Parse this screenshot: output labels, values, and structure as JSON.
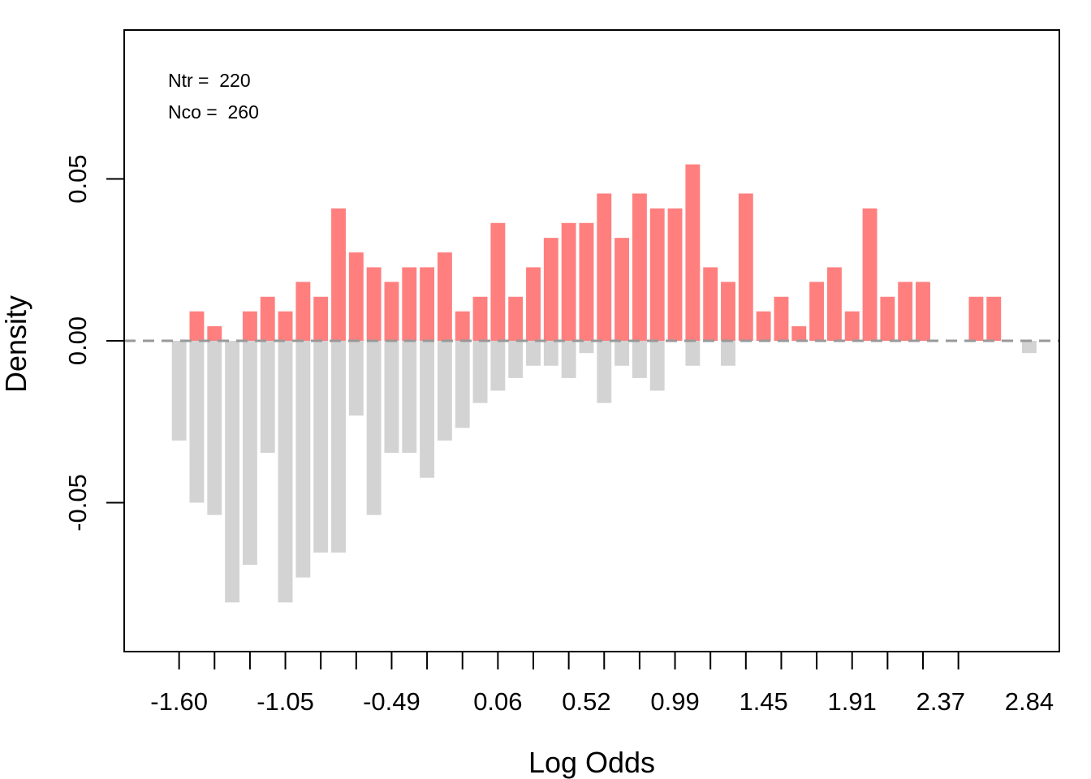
{
  "chart_data": {
    "type": "bar",
    "title": "",
    "xlabel": "Log Odds",
    "ylabel": "Density",
    "xlim": [
      -1.91,
      3.37
    ],
    "ylim": [
      -0.096,
      0.096
    ],
    "x_ticks": [
      -1.6,
      -1.4,
      -1.2,
      -1.0,
      -0.8,
      -0.6,
      -0.4,
      -0.2,
      0.0,
      0.2,
      0.4,
      0.6,
      0.8,
      1.0,
      1.2,
      1.4,
      1.6,
      1.8,
      2.0,
      2.2,
      2.4,
      2.6,
      2.8
    ],
    "x_tick_labels": [
      "-1.60",
      "-1.05",
      "-0.49",
      "0.06",
      "0.52",
      "0.99",
      "1.45",
      "1.91",
      "2.37",
      "2.84"
    ],
    "x_tick_label_positions": [
      -1.6,
      -1.0,
      -0.4,
      0.2,
      0.7,
      1.2,
      1.7,
      2.2,
      2.7,
      3.2
    ],
    "y_ticks": [
      -0.05,
      0.0,
      0.05
    ],
    "y_tick_labels": [
      "-0.05",
      "0.00",
      "0.05"
    ],
    "bin_width": 0.1,
    "bin_centers": [
      -1.6,
      -1.5,
      -1.4,
      -1.3,
      -1.2,
      -1.1,
      -1.0,
      -0.9,
      -0.8,
      -0.7,
      -0.6,
      -0.5,
      -0.4,
      -0.3,
      -0.2,
      -0.1,
      0.0,
      0.1,
      0.2,
      0.3,
      0.4,
      0.5,
      0.6,
      0.7,
      0.8,
      0.9,
      1.0,
      1.1,
      1.2,
      1.3,
      1.4,
      1.5,
      1.6,
      1.7,
      1.8,
      1.9,
      2.0,
      2.1,
      2.2,
      2.3,
      2.4,
      2.5,
      2.6,
      2.7,
      2.8,
      2.9,
      3.0,
      3.1,
      3.2
    ],
    "series": [
      {
        "name": "Ntr",
        "color": "#FF7F7F",
        "values": [
          0,
          0.0091,
          0.0045,
          0,
          0.0091,
          0.0136,
          0.0091,
          0.0182,
          0.0136,
          0.0409,
          0.0273,
          0.0227,
          0.0182,
          0.0227,
          0.0227,
          0.0273,
          0.0091,
          0.0136,
          0.0364,
          0.0136,
          0.0227,
          0.0318,
          0.0364,
          0.0364,
          0.0455,
          0.0318,
          0.0455,
          0.0409,
          0.0409,
          0.0545,
          0.0227,
          0.0182,
          0.0455,
          0.0091,
          0.0136,
          0.0045,
          0.0182,
          0.0227,
          0.0091,
          0.0409,
          0.0136,
          0.0182,
          0.0182,
          0,
          0,
          0.0136,
          0.0136,
          0,
          0
        ]
      },
      {
        "name": "Nco",
        "color": "#D3D3D3",
        "values": [
          -0.0308,
          -0.05,
          -0.0538,
          -0.0808,
          -0.0692,
          -0.0346,
          -0.0808,
          -0.0731,
          -0.0654,
          -0.0654,
          -0.0231,
          -0.0538,
          -0.0346,
          -0.0346,
          -0.0423,
          -0.0308,
          -0.0269,
          -0.0192,
          -0.0154,
          -0.0115,
          -0.0077,
          -0.0077,
          -0.0115,
          -0.0038,
          -0.0192,
          -0.0077,
          -0.0115,
          -0.0154,
          0,
          -0.0077,
          0,
          -0.0077,
          0,
          0,
          0,
          0,
          0,
          0,
          0,
          0,
          0,
          0,
          0,
          0,
          0,
          0,
          0,
          0,
          -0.0038
        ]
      }
    ],
    "reference_line": {
      "y": 0,
      "style": "dashed",
      "color": "#999999"
    },
    "annotations": [
      "Ntr =  220",
      "Nco =  260"
    ],
    "grid": false,
    "legend": "none"
  }
}
